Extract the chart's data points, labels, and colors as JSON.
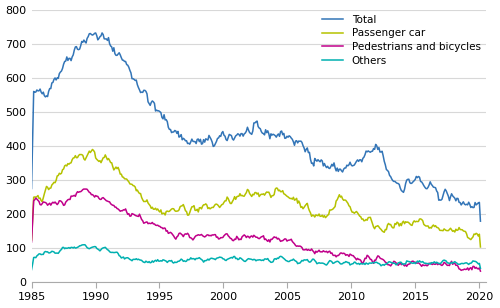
{
  "title": "",
  "xlabel": "",
  "ylabel": "",
  "xlim": [
    1985.0,
    2020.5
  ],
  "ylim": [
    0,
    800
  ],
  "yticks": [
    0,
    100,
    200,
    300,
    400,
    500,
    600,
    700,
    800
  ],
  "xticks": [
    1985,
    1990,
    1995,
    2000,
    2005,
    2010,
    2015,
    2020
  ],
  "legend_labels": [
    "Total",
    "Passenger car",
    "Pedestrians and bicycles",
    "Others"
  ],
  "colors": [
    "#3375b7",
    "#b5c200",
    "#c0008a",
    "#00b0b0"
  ],
  "linewidth": 1.1,
  "figsize": [
    5.0,
    3.08
  ],
  "dpi": 100,
  "bg_color": "#ffffff",
  "grid_color": "#d8d8d8",
  "spine_color": "#aaaaaa"
}
